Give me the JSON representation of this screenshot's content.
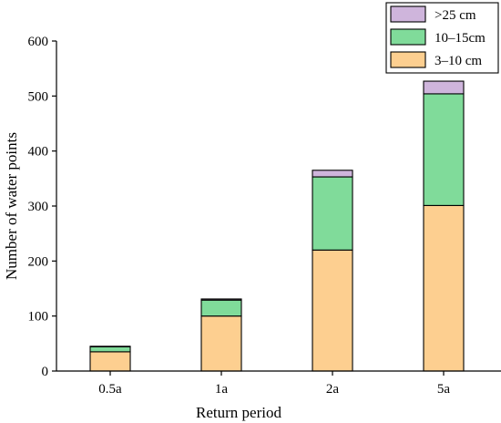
{
  "chart_data": {
    "type": "bar",
    "stacked": true,
    "categories": [
      "0.5a",
      "1a",
      "2a",
      "5a"
    ],
    "series": [
      {
        "name": "3–10 cm",
        "color": "#fdcf90",
        "values": [
          35,
          100,
          220,
          301
        ]
      },
      {
        "name": "10–15cm",
        "color": "#80db9a",
        "values": [
          9,
          29,
          133,
          203
        ]
      },
      {
        "name": ">25 cm",
        "color": "#cfb5dc",
        "values": [
          1,
          2,
          12,
          23
        ]
      }
    ],
    "title": "",
    "xlabel": "Return period",
    "ylabel": "Number of water points",
    "ylim": [
      0,
      600
    ],
    "yticks": [
      0,
      100,
      200,
      300,
      400,
      500,
      600
    ],
    "grid": false,
    "legend_position": "top-right",
    "legend_order": [
      ">25 cm",
      "10–15cm",
      "3–10 cm"
    ]
  }
}
